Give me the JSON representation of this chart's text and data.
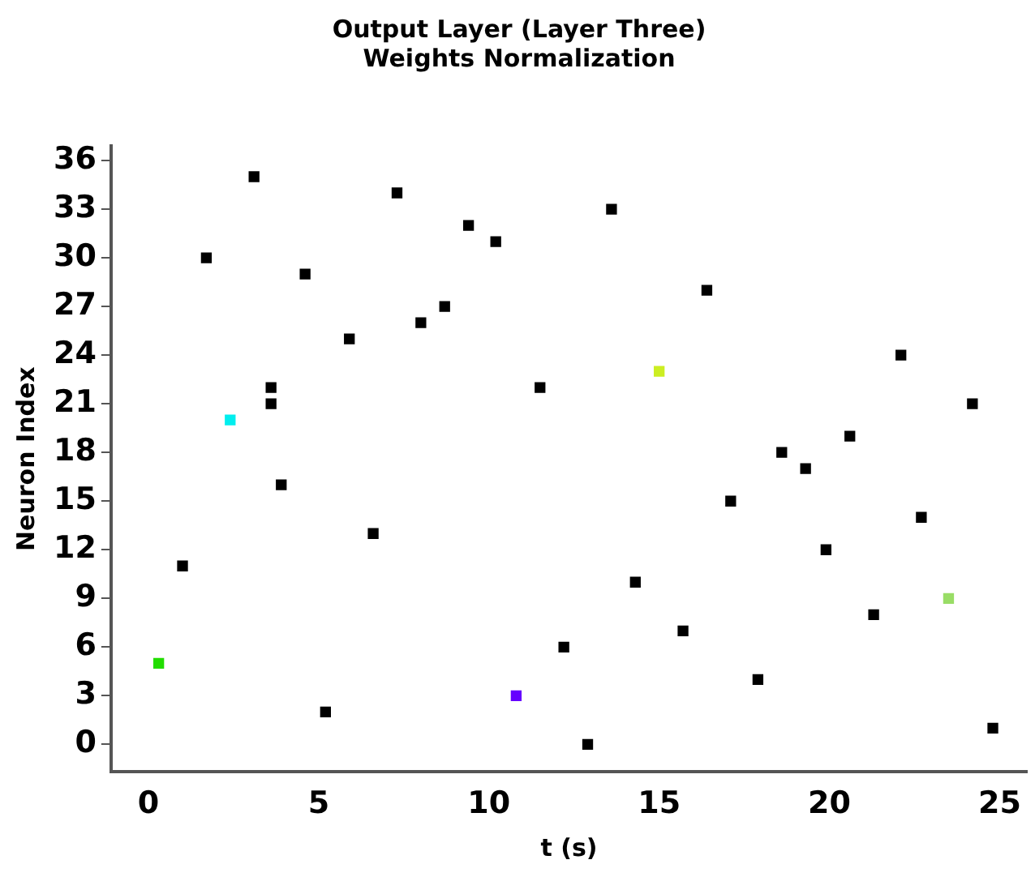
{
  "chart_data": {
    "type": "scatter",
    "title": "Output Layer (Layer Three)\nWeights Normalization",
    "xlabel": "t (s)",
    "ylabel": "Neuron Index",
    "x": [
      3.1,
      7.3,
      13.6,
      9.4,
      10.2,
      1.7,
      4.6,
      16.4,
      8.7,
      8.0,
      5.9,
      22.1,
      15.0,
      11.5,
      3.6,
      24.2,
      3.6,
      2.4,
      20.6,
      18.6,
      19.3,
      3.9,
      17.1,
      22.7,
      6.6,
      19.9,
      1.0,
      14.3,
      23.5,
      21.3,
      15.7,
      12.2,
      0.3,
      17.9,
      10.8,
      5.2,
      24.8,
      12.9
    ],
    "values": [
      35,
      34,
      33,
      32,
      31,
      30,
      29,
      28,
      27,
      26,
      25,
      24,
      23,
      22,
      22,
      21,
      21,
      20,
      19,
      18,
      17,
      16,
      15,
      14,
      13,
      12,
      11,
      10,
      9,
      8,
      7,
      6,
      5,
      4,
      3,
      2,
      1,
      0
    ],
    "colors": [
      "#000000",
      "#000000",
      "#000000",
      "#000000",
      "#000000",
      "#000000",
      "#000000",
      "#000000",
      "#000000",
      "#000000",
      "#000000",
      "#000000",
      "#ccee22",
      "#000000",
      "#000000",
      "#000000",
      "#000000",
      "#00eeee",
      "#000000",
      "#000000",
      "#000000",
      "#000000",
      "#000000",
      "#000000",
      "#000000",
      "#000000",
      "#000000",
      "#000000",
      "#99dd66",
      "#000000",
      "#000000",
      "#000000",
      "#22dd00",
      "#000000",
      "#6600ff",
      "#000000",
      "#000000",
      "#000000"
    ],
    "marker": "square",
    "xlim": [
      -1.1,
      25.8
    ],
    "xticks": [
      0,
      5,
      10,
      15,
      20,
      25
    ],
    "ylim": [
      -1.7,
      36.9
    ],
    "yticks": [
      0,
      3,
      6,
      9,
      12,
      15,
      18,
      21,
      24,
      27,
      30,
      33,
      36
    ],
    "grid": false,
    "legend": false
  }
}
